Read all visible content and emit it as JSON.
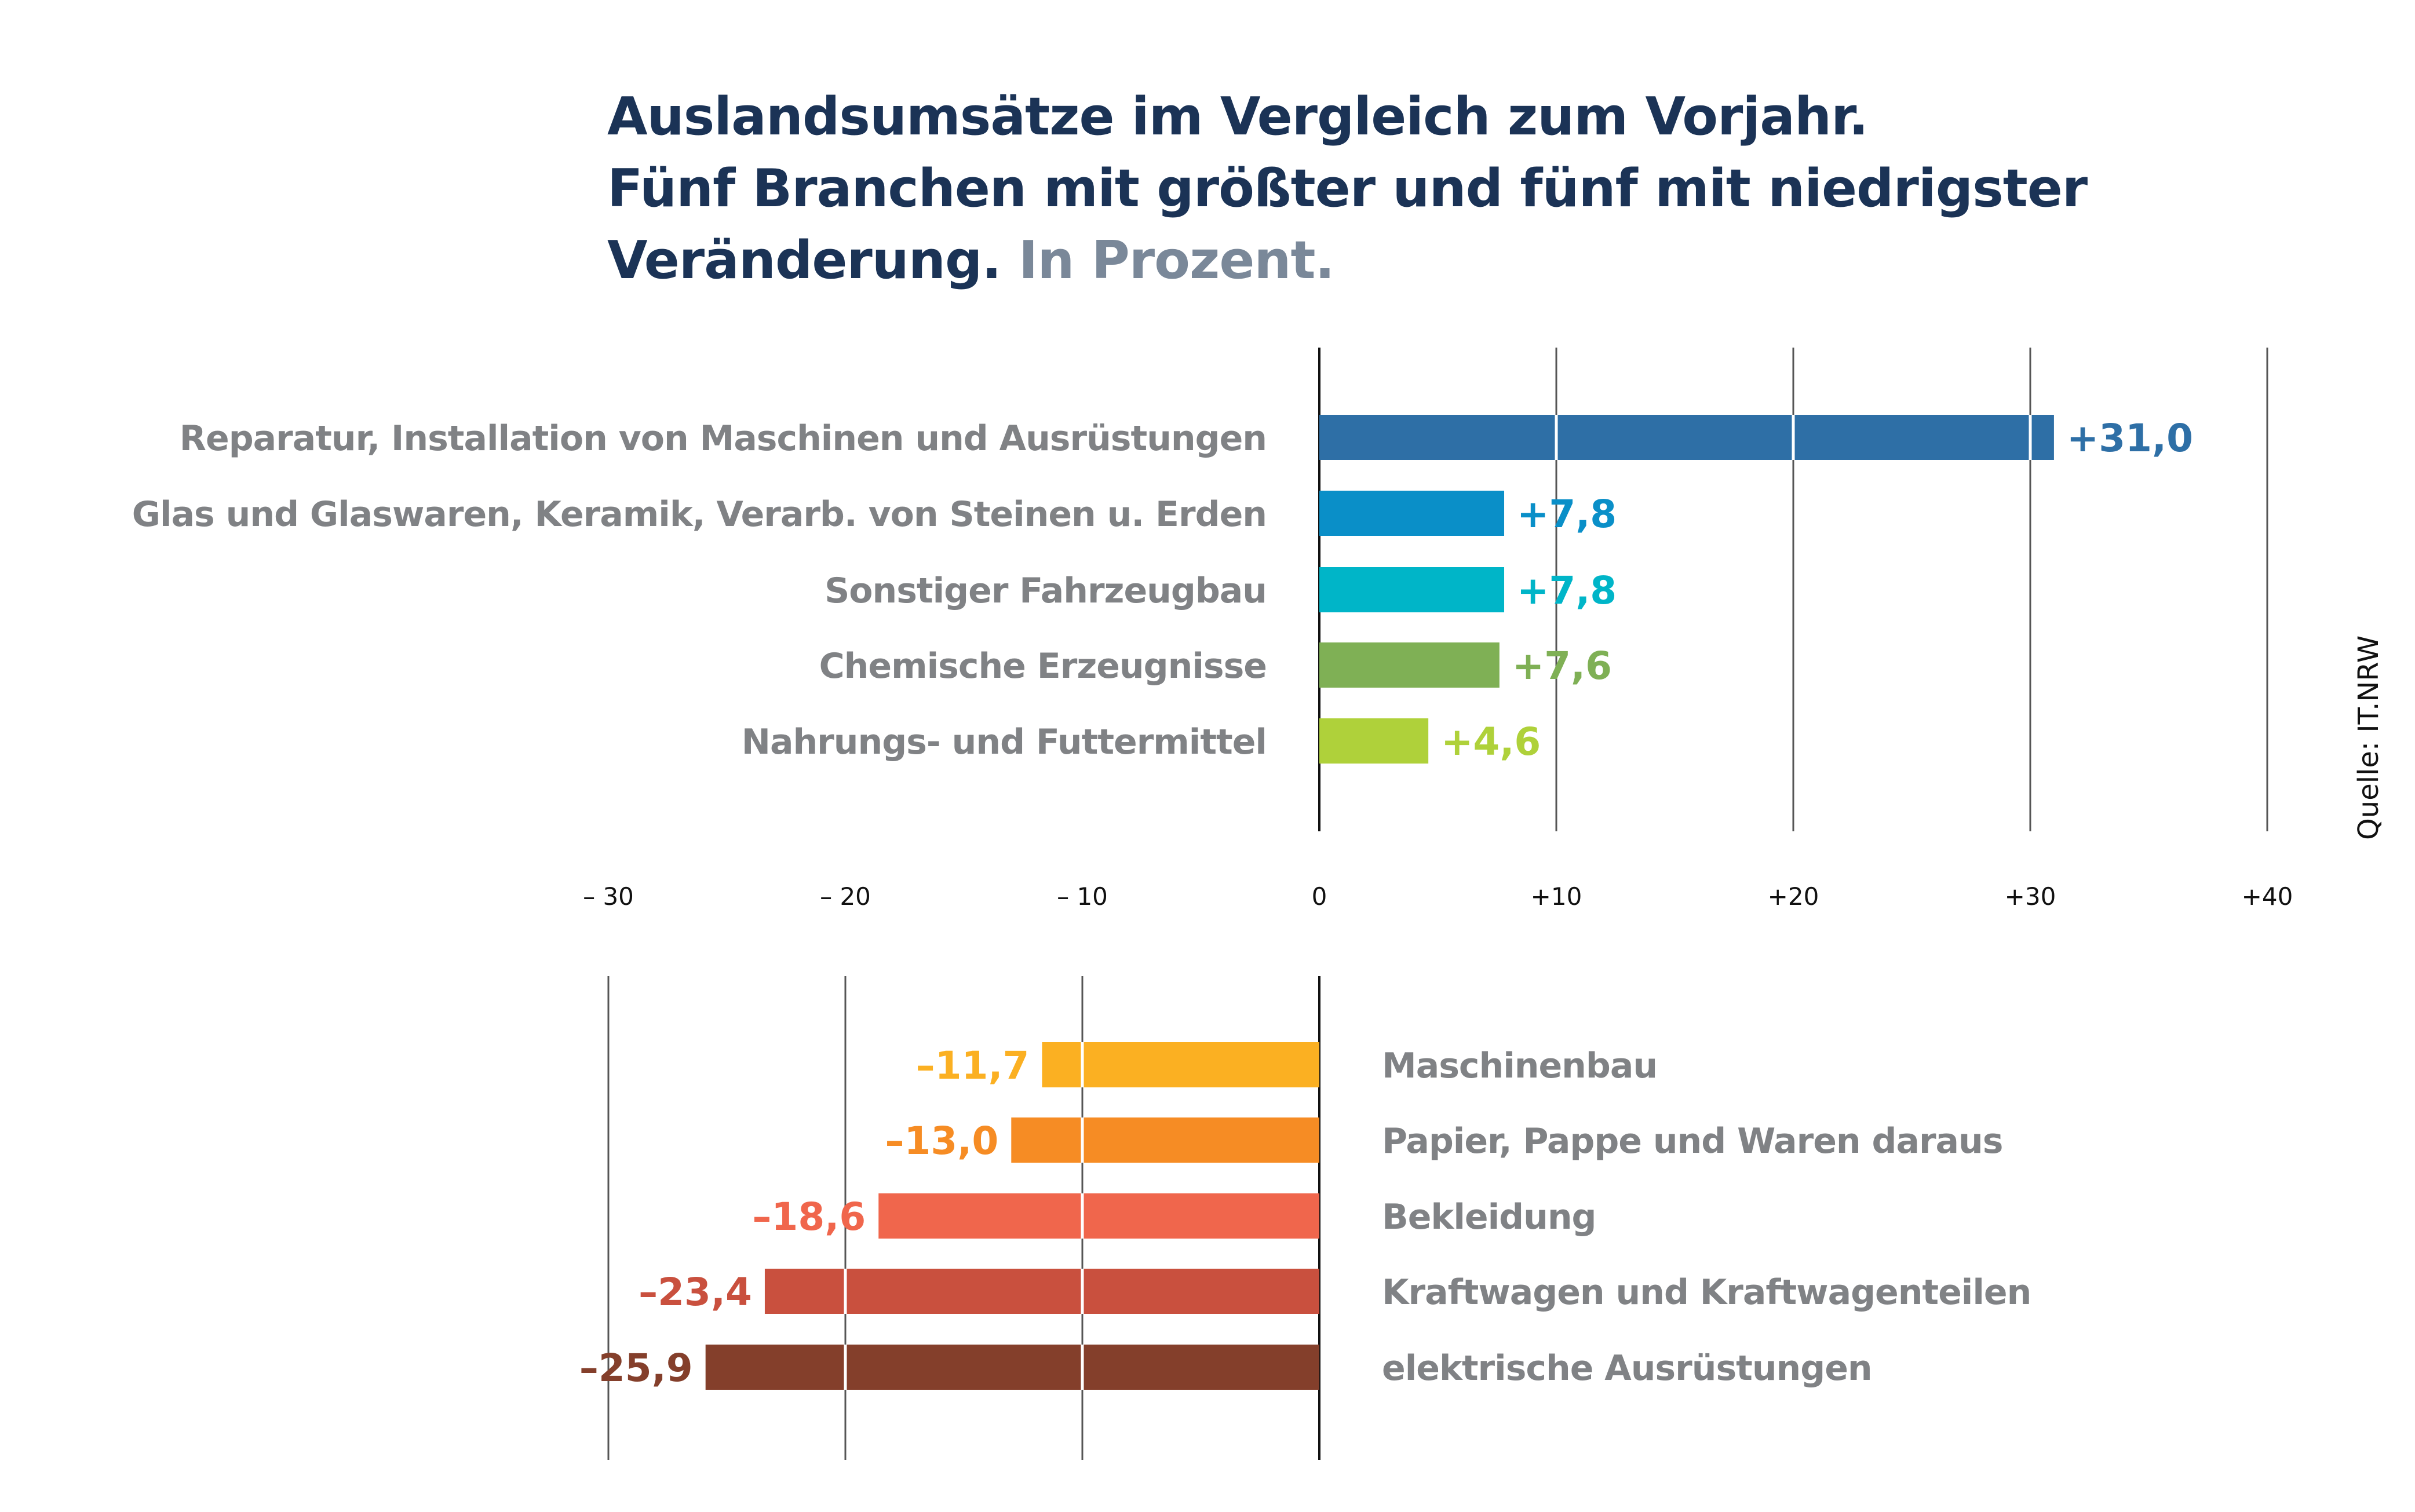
{
  "title": {
    "line1": "Auslandsumsätze im Vergleich zum Vorjahr.",
    "line2": "Fünf Branchen mit größter und fünf mit niedrigster",
    "line3": "Veränderung.",
    "unit": "In Prozent."
  },
  "source": "Quelle: IT.NRW",
  "chart_data": {
    "type": "bar",
    "orientation": "horizontal",
    "xlim": [
      -30,
      40
    ],
    "x_ticks": [
      -30,
      -20,
      -10,
      0,
      10,
      20,
      30,
      40
    ],
    "tick_labels": [
      "– 30",
      "– 20",
      "– 10",
      "0",
      "+10",
      "+20",
      "+30",
      "+40"
    ],
    "grid": true,
    "groups": [
      {
        "name": "top",
        "categories": [
          "Reparatur, Installation von Maschinen und Ausrüstungen",
          "Glas und Glaswaren, Keramik, Verarb. von Steinen u. Erden",
          "Sonstiger Fahrzeugbau",
          "Chemische Erzeugnisse",
          "Nahrungs- und Futtermittel"
        ],
        "values": [
          31.0,
          7.8,
          7.8,
          7.6,
          4.6
        ],
        "value_labels": [
          "+31,0",
          "+7,8",
          "+7,8",
          "+7,6",
          "+4,6"
        ],
        "colors": [
          "#2e6fa6",
          "#0a8fc8",
          "#00b5c8",
          "#7fb055",
          "#afd13a"
        ]
      },
      {
        "name": "bottom",
        "categories": [
          "Maschinenbau",
          "Papier, Pappe und Waren daraus",
          "Bekleidung",
          "Kraftwagen und Kraftwagenteilen",
          "elektrische Ausrüstungen"
        ],
        "values": [
          -11.7,
          -13.0,
          -18.6,
          -23.4,
          -25.9
        ],
        "value_labels": [
          "–11,7",
          "–13,0",
          "–18,6",
          "–23,4",
          "–25,9"
        ],
        "colors": [
          "#fbb022",
          "#f68c24",
          "#f0664c",
          "#c9503e",
          "#843f2b"
        ]
      }
    ]
  }
}
